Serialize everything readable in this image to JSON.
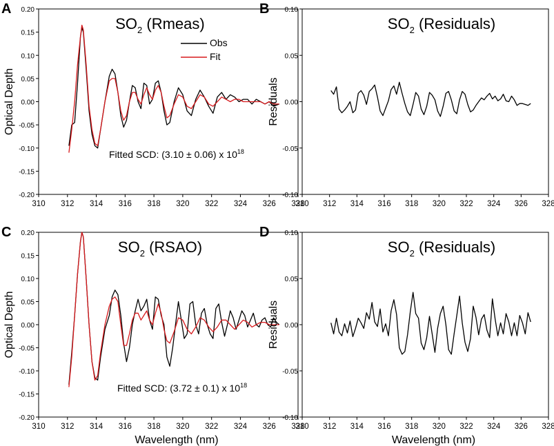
{
  "chart_data": [
    {
      "panel_letter": "A",
      "type": "line",
      "title_main": "SO",
      "title_sub": "2",
      "title_rest": " (Rmeas)",
      "xlabel": "",
      "ylabel": "Optical Depth",
      "xlim": [
        310,
        328
      ],
      "ylim": [
        -0.2,
        0.2
      ],
      "xticks": [
        "310",
        "312",
        "314",
        "316",
        "318",
        "320",
        "322",
        "324",
        "326",
        "328"
      ],
      "yticks": [
        "-0.20",
        "-0.15",
        "-0.10",
        "-0.05",
        "0.00",
        "0.05",
        "0.10",
        "0.15",
        "0.20"
      ],
      "legend": {
        "placement": "top-center",
        "entries": [
          {
            "label": "Obs",
            "color": "#000000"
          },
          {
            "label": "Fit",
            "color": "#d7191c"
          }
        ]
      },
      "annotation": {
        "prefix": "Fitted SCD:  (3.10 ± 0.06) x 10",
        "sup": "18"
      },
      "series": [
        {
          "name": "Obs",
          "color": "#000000",
          "x": [
            312.1,
            312.3,
            312.5,
            312.7,
            312.9,
            313.0,
            313.1,
            313.3,
            313.5,
            313.7,
            313.9,
            314.1,
            314.3,
            314.6,
            314.9,
            315.1,
            315.3,
            315.5,
            315.7,
            315.9,
            316.1,
            316.3,
            316.5,
            316.7,
            316.9,
            317.1,
            317.3,
            317.5,
            317.7,
            317.9,
            318.1,
            318.3,
            318.5,
            318.7,
            318.9,
            319.1,
            319.4,
            319.7,
            320.0,
            320.3,
            320.6,
            320.9,
            321.2,
            321.5,
            321.8,
            322.1,
            322.4,
            322.7,
            323.0,
            323.3,
            323.6,
            323.9,
            324.2,
            324.5,
            324.8,
            325.1,
            325.4,
            325.7,
            326.0,
            326.3,
            326.7
          ],
          "y": [
            -0.095,
            -0.05,
            -0.045,
            0.04,
            0.14,
            0.16,
            0.15,
            0.07,
            -0.02,
            -0.07,
            -0.095,
            -0.1,
            -0.06,
            0.0,
            0.055,
            0.07,
            0.06,
            0.02,
            -0.03,
            -0.055,
            -0.04,
            0.0,
            0.035,
            0.03,
            0.0,
            -0.015,
            0.04,
            0.035,
            -0.005,
            0.005,
            0.04,
            0.045,
            0.02,
            -0.02,
            -0.05,
            -0.045,
            0.0,
            0.03,
            0.015,
            -0.02,
            -0.03,
            0.005,
            0.025,
            0.01,
            -0.01,
            -0.025,
            0.01,
            0.02,
            0.005,
            0.015,
            0.01,
            0.0,
            0.005,
            0.005,
            -0.005,
            0.005,
            0.0,
            -0.005,
            0.0,
            -0.01,
            -0.005
          ]
        },
        {
          "name": "Fit",
          "color": "#d7191c",
          "x": [
            312.1,
            312.3,
            312.5,
            312.7,
            312.9,
            313.0,
            313.1,
            313.3,
            313.5,
            313.7,
            313.9,
            314.1,
            314.3,
            314.6,
            314.9,
            315.1,
            315.3,
            315.5,
            315.7,
            315.9,
            316.1,
            316.3,
            316.5,
            316.7,
            316.9,
            317.1,
            317.3,
            317.5,
            317.7,
            317.9,
            318.1,
            318.3,
            318.5,
            318.7,
            318.9,
            319.1,
            319.4,
            319.7,
            320.0,
            320.3,
            320.6,
            320.9,
            321.2,
            321.5,
            321.8,
            322.1,
            322.4,
            322.7,
            323.0,
            323.3,
            323.6,
            323.9,
            324.2,
            324.5,
            324.8,
            325.1,
            325.4,
            325.7,
            326.0,
            326.3,
            326.7
          ],
          "y": [
            -0.11,
            -0.06,
            0.0,
            0.08,
            0.14,
            0.165,
            0.155,
            0.08,
            -0.01,
            -0.06,
            -0.09,
            -0.095,
            -0.06,
            0.0,
            0.045,
            0.05,
            0.05,
            0.02,
            -0.02,
            -0.04,
            -0.03,
            0.0,
            0.02,
            0.02,
            0.005,
            -0.005,
            0.015,
            0.03,
            0.015,
            0.005,
            0.025,
            0.035,
            0.02,
            -0.01,
            -0.035,
            -0.03,
            -0.005,
            0.015,
            0.01,
            -0.01,
            -0.015,
            0.0,
            0.015,
            0.01,
            -0.005,
            -0.01,
            0.0,
            0.01,
            0.005,
            0.0,
            0.005,
            0.005,
            0.0,
            0.0,
            0.0,
            0.0,
            0.0,
            -0.005,
            0.0,
            -0.005,
            -0.005
          ]
        }
      ]
    },
    {
      "panel_letter": "B",
      "type": "line",
      "title_main": "SO",
      "title_sub": "2",
      "title_rest": " (Residuals)",
      "xlabel": "",
      "ylabel": "Residuals",
      "xlim": [
        310,
        328
      ],
      "ylim": [
        -0.1,
        0.1
      ],
      "xticks": [
        "310",
        "312",
        "314",
        "316",
        "318",
        "320",
        "322",
        "324",
        "326",
        "328"
      ],
      "yticks": [
        "-0.10",
        "-0.05",
        "0.00",
        "0.05",
        "0.10"
      ],
      "series": [
        {
          "name": "Residuals",
          "color": "#000000",
          "x": [
            312.1,
            312.3,
            312.5,
            312.7,
            312.9,
            313.1,
            313.3,
            313.5,
            313.7,
            313.9,
            314.1,
            314.3,
            314.5,
            314.7,
            314.9,
            315.1,
            315.3,
            315.5,
            315.7,
            315.9,
            316.1,
            316.3,
            316.5,
            316.7,
            316.9,
            317.1,
            317.3,
            317.5,
            317.7,
            317.9,
            318.1,
            318.3,
            318.5,
            318.7,
            318.9,
            319.1,
            319.3,
            319.5,
            319.7,
            319.9,
            320.1,
            320.3,
            320.5,
            320.7,
            320.9,
            321.1,
            321.3,
            321.5,
            321.7,
            321.9,
            322.1,
            322.3,
            322.5,
            322.7,
            322.9,
            323.1,
            323.3,
            323.5,
            323.7,
            323.9,
            324.1,
            324.3,
            324.5,
            324.7,
            324.9,
            325.1,
            325.3,
            325.5,
            325.7,
            325.9,
            326.1,
            326.3,
            326.5,
            326.7
          ],
          "y": [
            0.012,
            0.008,
            0.016,
            -0.008,
            -0.012,
            -0.009,
            -0.005,
            0.0,
            -0.012,
            -0.009,
            0.009,
            0.012,
            0.007,
            -0.003,
            0.011,
            0.014,
            0.018,
            0.005,
            -0.01,
            -0.015,
            -0.007,
            0.001,
            0.013,
            0.017,
            0.008,
            0.021,
            0.009,
            -0.002,
            -0.011,
            -0.015,
            -0.003,
            0.01,
            0.006,
            -0.008,
            -0.014,
            -0.005,
            0.01,
            0.007,
            0.002,
            -0.01,
            -0.016,
            -0.005,
            0.009,
            0.011,
            0.002,
            -0.01,
            -0.013,
            0.002,
            0.011,
            0.008,
            -0.003,
            -0.011,
            -0.009,
            -0.004,
            0.0,
            0.004,
            0.002,
            0.006,
            0.009,
            0.003,
            0.006,
            0.001,
            0.003,
            0.008,
            0.001,
            0.0,
            0.006,
            0.002,
            -0.004,
            -0.002,
            -0.002,
            -0.003,
            -0.004,
            -0.002
          ]
        }
      ]
    },
    {
      "panel_letter": "C",
      "type": "line",
      "title_main": "SO",
      "title_sub": "2",
      "title_rest": " (RSAO)",
      "xlabel": "Wavelength (nm)",
      "ylabel": "Optical Depth",
      "xlim": [
        310,
        328
      ],
      "ylim": [
        -0.2,
        0.2
      ],
      "xticks": [
        "310",
        "312",
        "314",
        "316",
        "318",
        "320",
        "322",
        "324",
        "326",
        "328"
      ],
      "yticks": [
        "-0.20",
        "-0.15",
        "-0.10",
        "-0.05",
        "0.00",
        "0.05",
        "0.10",
        "0.15",
        "0.20"
      ],
      "annotation": {
        "prefix": "Fitted SCD:  (3.72 ± 0.1) x 10",
        "sup": "18"
      },
      "series": [
        {
          "name": "Obs",
          "color": "#000000",
          "x": [
            312.1,
            312.3,
            312.5,
            312.7,
            312.9,
            313.0,
            313.1,
            313.3,
            313.5,
            313.7,
            313.9,
            314.1,
            314.3,
            314.6,
            314.9,
            315.1,
            315.3,
            315.5,
            315.7,
            315.9,
            316.1,
            316.3,
            316.5,
            316.7,
            316.9,
            317.1,
            317.3,
            317.5,
            317.7,
            317.9,
            318.1,
            318.3,
            318.5,
            318.7,
            318.9,
            319.1,
            319.3,
            319.5,
            319.7,
            319.9,
            320.1,
            320.3,
            320.5,
            320.7,
            320.9,
            321.1,
            321.3,
            321.5,
            321.7,
            321.9,
            322.1,
            322.3,
            322.5,
            322.7,
            322.9,
            323.1,
            323.3,
            323.5,
            323.7,
            323.9,
            324.1,
            324.3,
            324.5,
            324.7,
            324.9,
            325.1,
            325.3,
            325.5,
            325.7,
            325.9,
            326.1,
            326.3,
            326.5,
            326.7
          ],
          "y": [
            -0.13,
            -0.06,
            0.02,
            0.11,
            0.18,
            0.2,
            0.19,
            0.1,
            0.0,
            -0.08,
            -0.115,
            -0.12,
            -0.07,
            -0.01,
            0.02,
            0.06,
            0.075,
            0.065,
            0.02,
            -0.04,
            -0.08,
            -0.05,
            0.0,
            0.03,
            0.055,
            0.03,
            0.04,
            0.055,
            0.01,
            -0.01,
            0.06,
            0.055,
            0.02,
            0.0,
            -0.07,
            -0.09,
            -0.05,
            0.0,
            0.05,
            0.01,
            -0.03,
            -0.02,
            0.045,
            0.05,
            0.0,
            -0.02,
            0.025,
            0.035,
            0.0,
            -0.02,
            -0.03,
            0.035,
            0.045,
            0.005,
            -0.025,
            0.0,
            0.03,
            0.015,
            -0.01,
            0.01,
            0.03,
            0.02,
            -0.005,
            0.01,
            0.025,
            0.0,
            -0.005,
            0.01,
            0.015,
            0.0,
            -0.005,
            0.015,
            0.005,
            0.0
          ]
        },
        {
          "name": "Fit",
          "color": "#d7191c",
          "x": [
            312.1,
            312.3,
            312.5,
            312.7,
            312.9,
            313.0,
            313.1,
            313.3,
            313.5,
            313.7,
            313.9,
            314.1,
            314.3,
            314.6,
            314.9,
            315.1,
            315.3,
            315.5,
            315.7,
            315.9,
            316.1,
            316.3,
            316.5,
            316.7,
            316.9,
            317.1,
            317.3,
            317.5,
            317.7,
            317.9,
            318.1,
            318.3,
            318.5,
            318.7,
            318.9,
            319.1,
            319.4,
            319.7,
            320.0,
            320.3,
            320.6,
            320.9,
            321.2,
            321.5,
            321.8,
            322.1,
            322.4,
            322.7,
            323.0,
            323.3,
            323.6,
            323.9,
            324.2,
            324.5,
            324.8,
            325.1,
            325.4,
            325.7,
            326.0,
            326.3,
            326.7
          ],
          "y": [
            -0.135,
            -0.07,
            0.02,
            0.11,
            0.18,
            0.2,
            0.19,
            0.1,
            0.0,
            -0.08,
            -0.12,
            -0.11,
            -0.06,
            0.0,
            0.04,
            0.055,
            0.06,
            0.05,
            0.0,
            -0.045,
            -0.045,
            -0.02,
            0.01,
            0.025,
            0.025,
            0.01,
            0.02,
            0.03,
            0.01,
            0.0,
            0.025,
            0.045,
            0.025,
            -0.01,
            -0.035,
            -0.04,
            -0.015,
            0.015,
            0.01,
            -0.01,
            -0.02,
            -0.005,
            0.015,
            0.01,
            -0.005,
            -0.015,
            -0.005,
            0.01,
            0.01,
            0.0,
            -0.01,
            0.0,
            0.01,
            0.005,
            -0.005,
            0.0,
            0.005,
            0.005,
            0.0,
            0.0,
            0.0
          ]
        }
      ]
    },
    {
      "panel_letter": "D",
      "type": "line",
      "title_main": "SO",
      "title_sub": "2",
      "title_rest": " (Residuals)",
      "xlabel": "Wavelength (nm)",
      "ylabel": "Residuals",
      "xlim": [
        310,
        328
      ],
      "ylim": [
        -0.1,
        0.1
      ],
      "xticks": [
        "310",
        "312",
        "314",
        "316",
        "318",
        "320",
        "322",
        "324",
        "326",
        "328"
      ],
      "yticks": [
        "-0.10",
        "-0.05",
        "0.00",
        "0.05",
        "0.10"
      ],
      "series": [
        {
          "name": "Residuals",
          "color": "#000000",
          "x": [
            312.1,
            312.3,
            312.5,
            312.7,
            312.9,
            313.1,
            313.3,
            313.5,
            313.7,
            313.9,
            314.1,
            314.3,
            314.5,
            314.7,
            314.9,
            315.1,
            315.3,
            315.5,
            315.7,
            315.9,
            316.1,
            316.3,
            316.5,
            316.7,
            316.9,
            317.1,
            317.3,
            317.5,
            317.7,
            317.9,
            318.1,
            318.3,
            318.5,
            318.7,
            318.9,
            319.1,
            319.3,
            319.5,
            319.7,
            319.9,
            320.1,
            320.3,
            320.5,
            320.7,
            320.9,
            321.1,
            321.3,
            321.5,
            321.7,
            321.9,
            322.1,
            322.3,
            322.5,
            322.7,
            322.9,
            323.1,
            323.3,
            323.5,
            323.7,
            323.9,
            324.1,
            324.3,
            324.5,
            324.7,
            324.9,
            325.1,
            325.3,
            325.5,
            325.7,
            325.9,
            326.1,
            326.3,
            326.5,
            326.7
          ],
          "y": [
            0.002,
            -0.01,
            0.007,
            -0.008,
            -0.012,
            0.001,
            -0.009,
            0.004,
            -0.013,
            -0.004,
            0.007,
            0.002,
            -0.004,
            0.013,
            0.006,
            0.024,
            0.003,
            -0.002,
            0.017,
            -0.008,
            0.001,
            -0.012,
            0.015,
            0.027,
            0.011,
            -0.025,
            -0.032,
            -0.029,
            -0.011,
            0.014,
            0.035,
            0.012,
            0.007,
            -0.02,
            -0.027,
            -0.014,
            0.009,
            -0.01,
            -0.03,
            -0.004,
            0.012,
            0.02,
            0.0,
            -0.027,
            -0.032,
            -0.01,
            0.01,
            0.031,
            0.002,
            -0.019,
            -0.029,
            -0.015,
            0.02,
            0.008,
            -0.011,
            0.006,
            0.011,
            -0.006,
            -0.014,
            0.028,
            0.006,
            -0.012,
            0.002,
            -0.01,
            0.012,
            0.003,
            -0.012,
            0.002,
            -0.012,
            0.01,
            0.002,
            -0.01,
            0.013,
            0.003
          ]
        }
      ]
    }
  ]
}
